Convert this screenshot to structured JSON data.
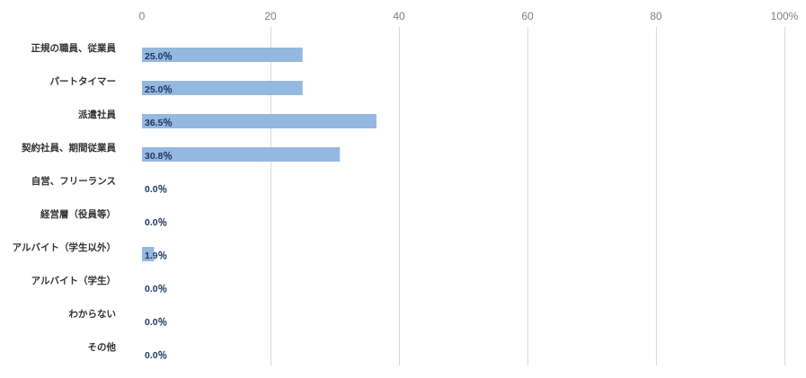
{
  "chart_data": {
    "type": "bar",
    "orientation": "horizontal",
    "categories": [
      "正規の職員、従業員",
      "パートタイマー",
      "派遣社員",
      "契約社員、期間従業員",
      "自営、フリーランス",
      "経営層（役員等）",
      "アルバイト（学生以外）",
      "アルバイト（学生）",
      "わからない",
      "その他"
    ],
    "values": [
      25.0,
      25.0,
      36.5,
      30.8,
      0.0,
      0.0,
      1.9,
      0.0,
      0.0,
      0.0
    ],
    "data_labels": [
      "25.0％",
      "25.0％",
      "36.5％",
      "30.8％",
      "0.0％",
      "0.0％",
      "1.9％",
      "0.0％",
      "0.0％",
      "0.0％"
    ],
    "x_ticks": [
      0,
      20,
      40,
      60,
      80,
      100
    ],
    "x_tick_labels": [
      "0",
      "20",
      "40",
      "60",
      "80",
      "100%"
    ],
    "xlim": [
      0,
      100
    ],
    "x_axis_position": "top",
    "grid": true,
    "title": "",
    "xlabel": "",
    "ylabel": "",
    "colors": {
      "bar": "#95b8e0",
      "grid": "#d9d9d9",
      "tick_text": "#7f7f7f",
      "category_text": "#333333",
      "data_label_text": "#1f3864"
    }
  }
}
